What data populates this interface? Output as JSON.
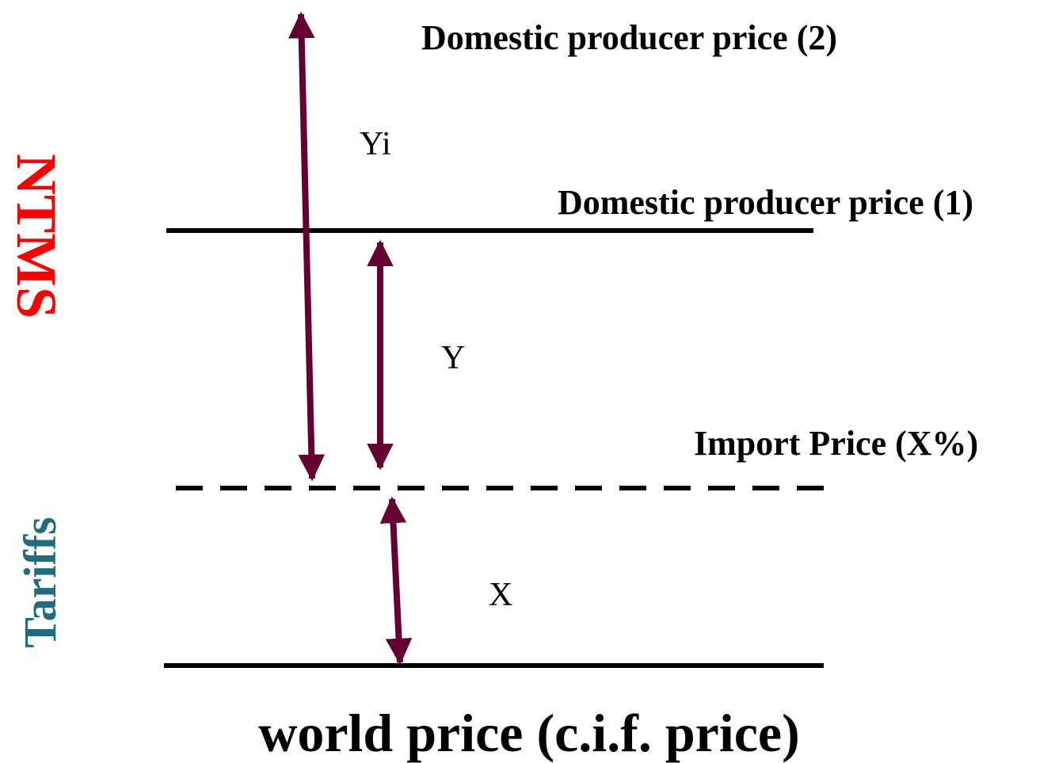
{
  "labels": {
    "domestic_price_2": "Domestic producer price (2)",
    "yi": "Yi",
    "domestic_price_1": "Domestic producer price (1)",
    "y": "Y",
    "import_price": "Import Price (X%)",
    "x": "X",
    "world_price": "world price (c.i.f. price)",
    "ntms": "NTMS",
    "tariffs": "Tariffs"
  }
}
